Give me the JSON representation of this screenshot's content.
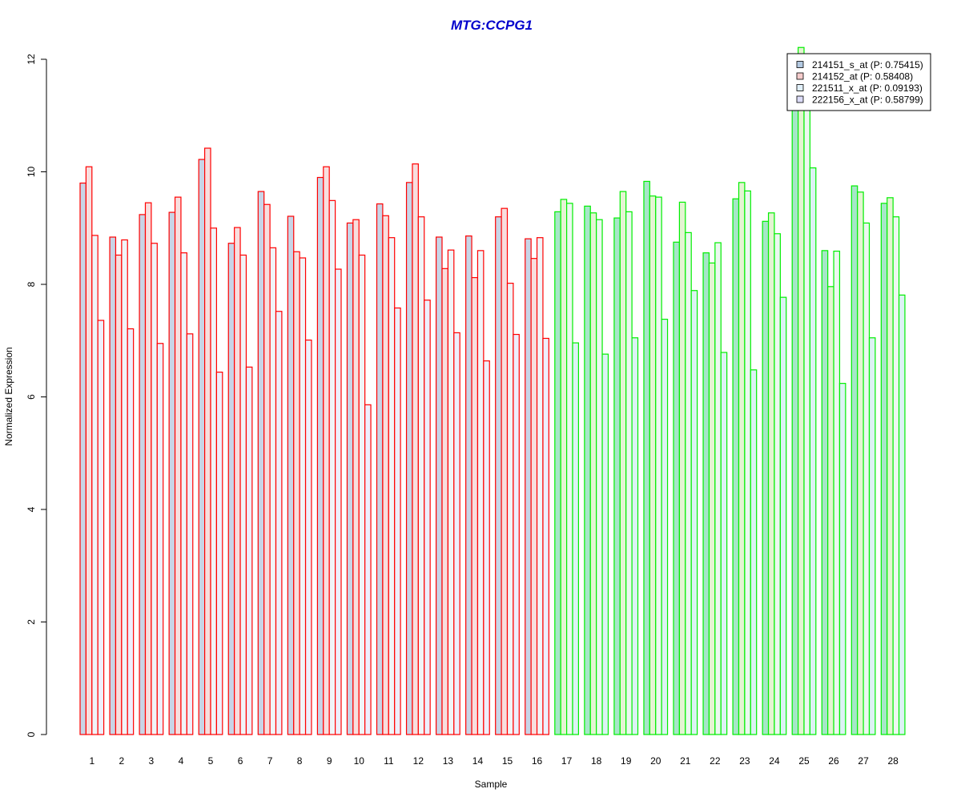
{
  "chart_data": {
    "type": "bar",
    "title": "MTG:CCPG1",
    "xlabel": "Sample",
    "ylabel": "Normalized Expression",
    "ylim": [
      0,
      12
    ],
    "yticks": [
      "0",
      "2",
      "4",
      "6",
      "8",
      "10",
      "12"
    ],
    "categories": [
      "1",
      "2",
      "3",
      "4",
      "5",
      "6",
      "7",
      "8",
      "9",
      "10",
      "11",
      "12",
      "13",
      "14",
      "15",
      "16",
      "17",
      "18",
      "19",
      "20",
      "21",
      "22",
      "23",
      "24",
      "25",
      "26",
      "27",
      "28"
    ],
    "group_border_colors": [
      "#ff0000",
      "#ff0000",
      "#ff0000",
      "#ff0000",
      "#ff0000",
      "#ff0000",
      "#ff0000",
      "#ff0000",
      "#ff0000",
      "#ff0000",
      "#ff0000",
      "#ff0000",
      "#ff0000",
      "#ff0000",
      "#ff0000",
      "#ff0000",
      "#00ee00",
      "#00ee00",
      "#00ee00",
      "#00ee00",
      "#00ee00",
      "#00ee00",
      "#00ee00",
      "#00ee00",
      "#00ee00",
      "#00ee00",
      "#00ee00",
      "#00ee00"
    ],
    "series": [
      {
        "name": "214151_s_at (P: 0.75415)",
        "fill_red": "#c8d4e6",
        "fill_green": "#a6e6c8",
        "values": [
          9.8,
          8.84,
          9.24,
          9.28,
          10.22,
          8.73,
          9.65,
          9.21,
          9.9,
          9.09,
          9.43,
          9.81,
          8.84,
          8.86,
          9.2,
          8.81,
          9.29,
          9.39,
          9.18,
          9.83,
          8.75,
          8.56,
          9.52,
          9.12,
          11.22,
          8.6,
          9.75,
          9.44
        ]
      },
      {
        "name": "214152_at (P: 0.58408)",
        "fill_red": "#f8dede",
        "fill_green": "#e4f4d2",
        "values": [
          10.09,
          8.52,
          9.45,
          9.55,
          10.42,
          9.01,
          9.42,
          8.58,
          10.09,
          9.15,
          9.22,
          10.14,
          8.28,
          8.12,
          9.35,
          8.46,
          9.51,
          9.27,
          9.65,
          9.57,
          9.46,
          8.38,
          9.81,
          9.27,
          12.21,
          7.96,
          9.64,
          9.54
        ]
      },
      {
        "name": "221511_x_at (P: 0.09193)",
        "fill_red": "#f0f4f8",
        "fill_green": "#ecf8f0",
        "values": [
          8.87,
          8.79,
          8.73,
          8.56,
          9.0,
          8.52,
          8.65,
          8.47,
          9.49,
          8.52,
          8.83,
          9.2,
          8.61,
          8.6,
          8.02,
          8.83,
          9.44,
          9.15,
          9.29,
          9.55,
          8.92,
          8.74,
          9.66,
          8.9,
          11.2,
          8.59,
          9.09,
          9.2
        ]
      },
      {
        "name": "222156_x_at (P: 0.58799)",
        "fill_red": "#eeeefc",
        "fill_green": "#dcf2f4",
        "values": [
          7.36,
          7.21,
          6.95,
          7.12,
          6.44,
          6.53,
          7.52,
          7.01,
          8.27,
          5.86,
          7.58,
          7.72,
          7.14,
          6.64,
          7.11,
          7.04,
          6.96,
          6.76,
          7.05,
          7.38,
          7.89,
          6.79,
          6.48,
          7.77,
          10.07,
          6.24,
          7.05,
          7.81
        ]
      }
    ],
    "legend": {
      "position": "top-right",
      "swatch_colors": [
        "#b3c9e1",
        "#f5cccc",
        "#e1f0fa",
        "#dcdcf8"
      ]
    },
    "grid": false
  }
}
